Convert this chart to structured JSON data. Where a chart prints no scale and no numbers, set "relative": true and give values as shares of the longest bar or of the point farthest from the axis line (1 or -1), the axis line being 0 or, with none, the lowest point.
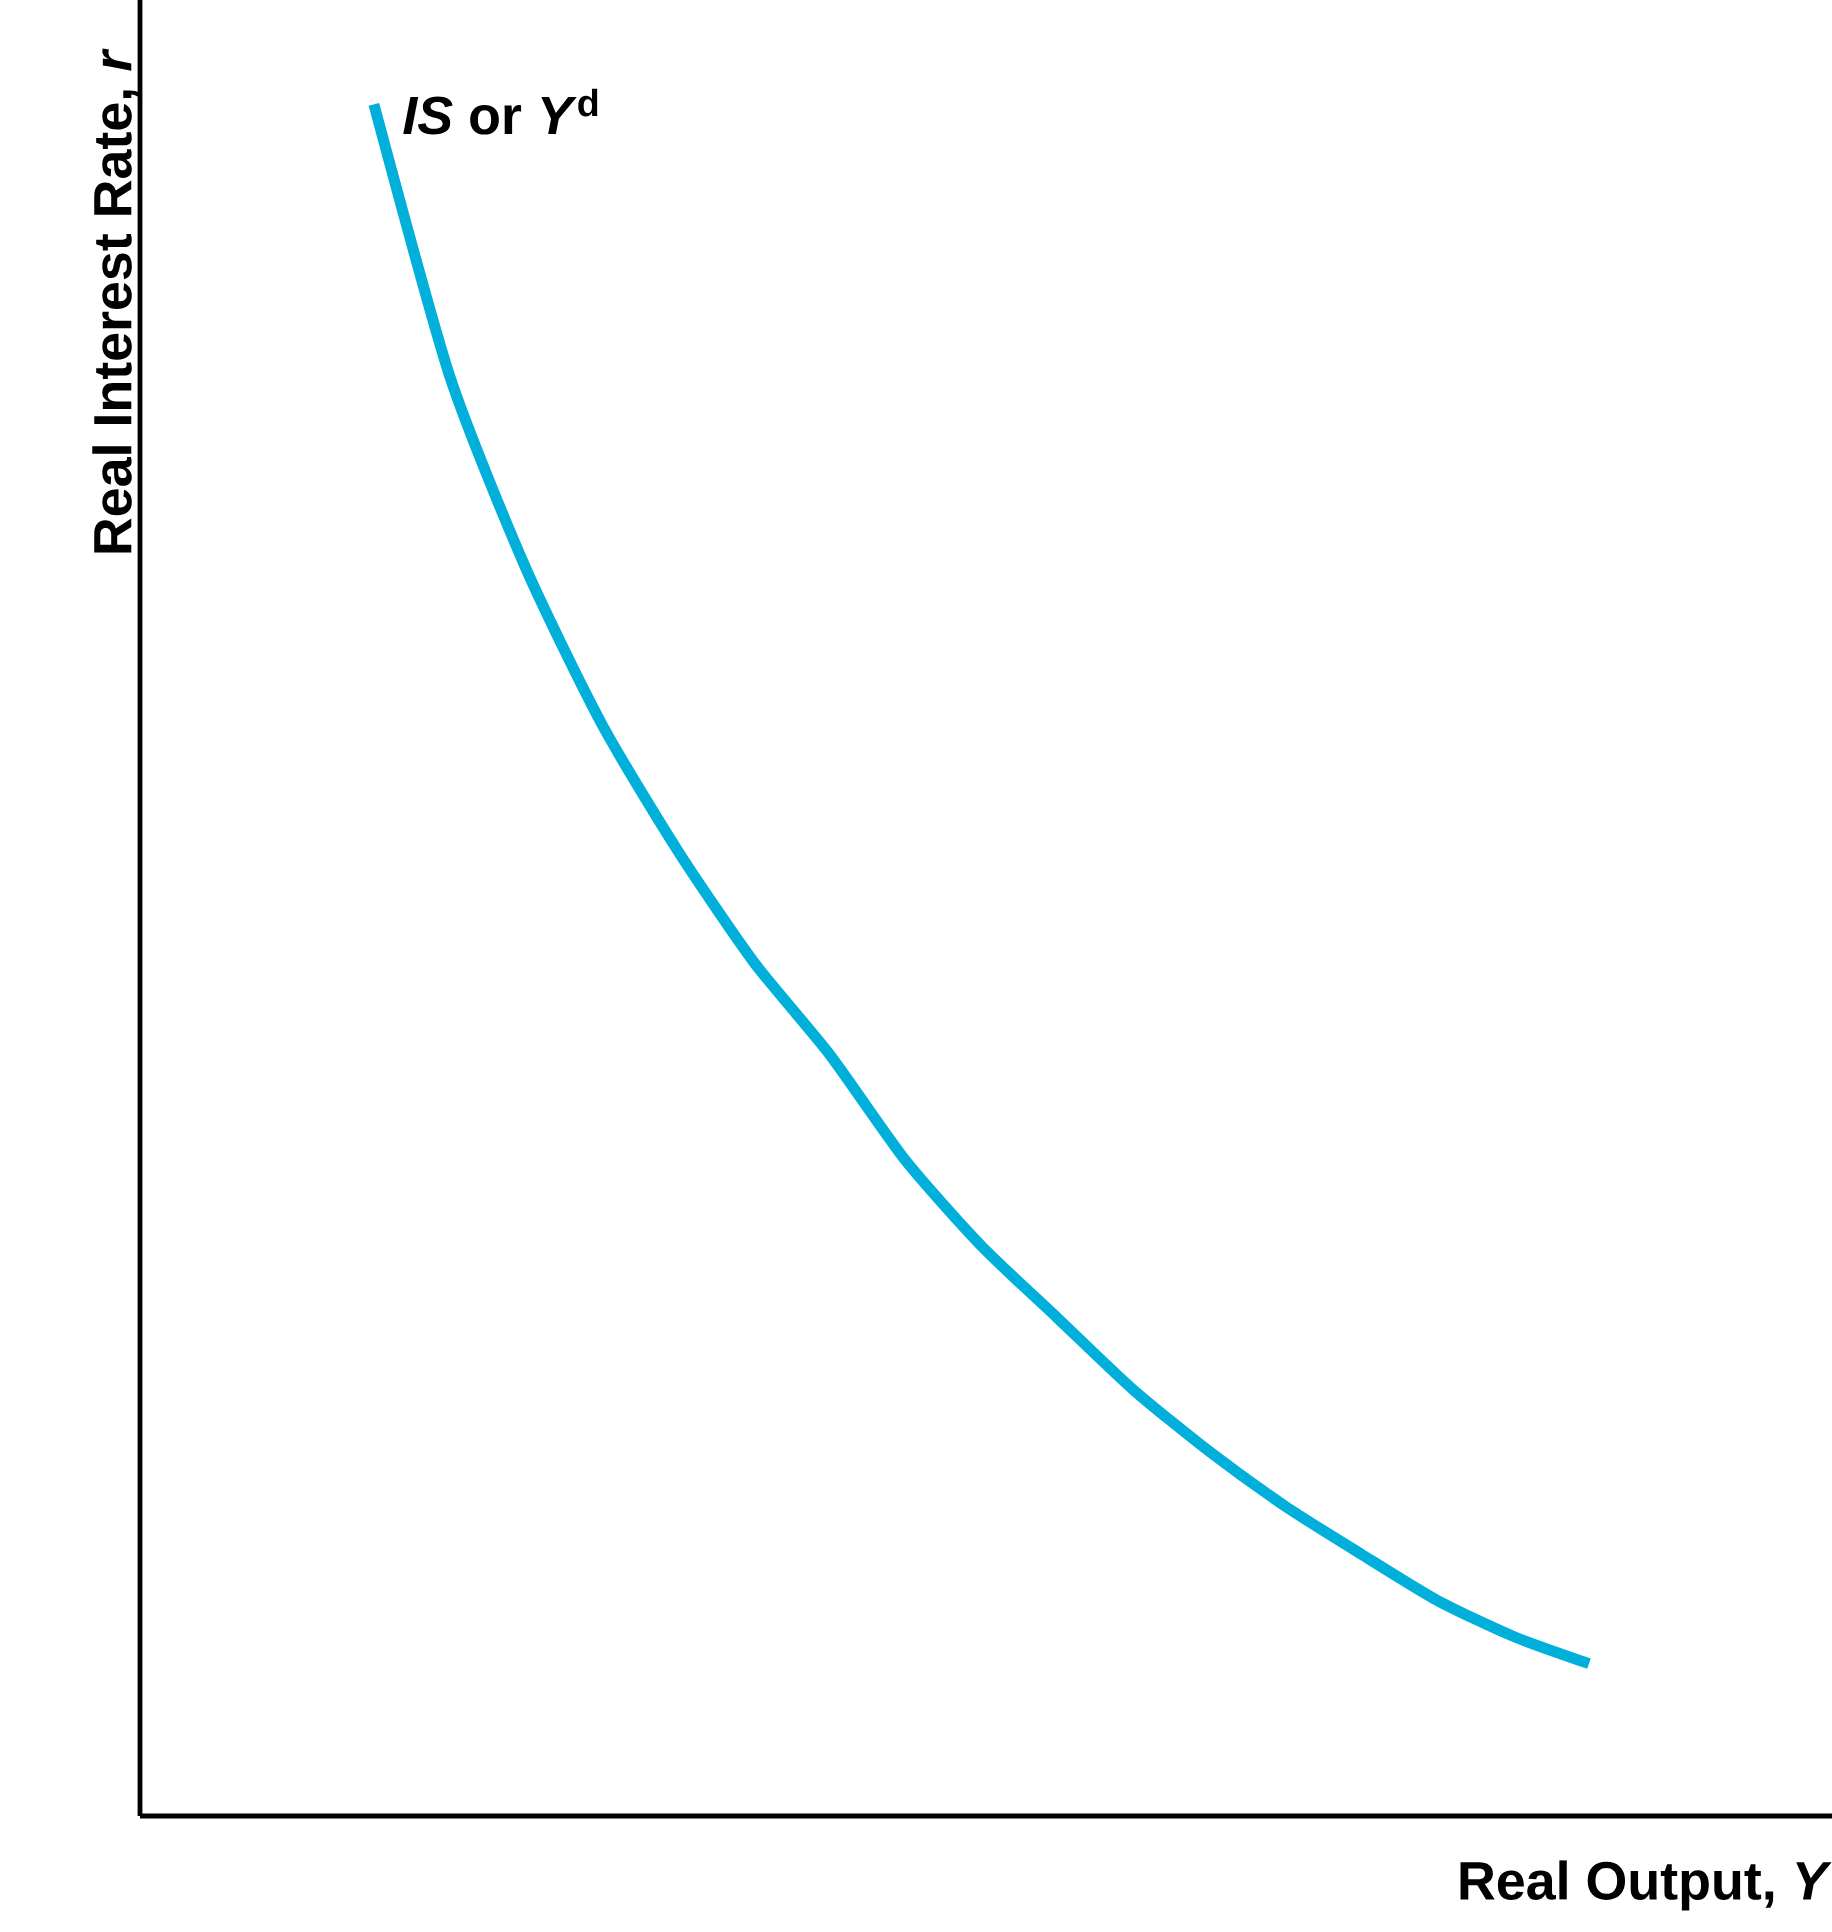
{
  "chart_data": {
    "type": "line",
    "relative": true,
    "xlabel": "Real Output, *Y*",
    "ylabel": "Real Interest Rate, *r*",
    "annotations": [
      "*IS* or *Y*$^{d}$"
    ],
    "categories": [
      null,
      null,
      null,
      null,
      null,
      null,
      null,
      null,
      null,
      null,
      null,
      null,
      null,
      null,
      null,
      null,
      null
    ],
    "color": "#00b0da",
    "values": [
      1,
      0.841,
      0.729,
      0.638,
      0.564,
      0.499,
      0.445,
      0.383,
      0.333,
      0.291,
      0.249,
      0.213,
      0.181,
      0.153,
      0.126,
      0.105,
      0.089
    ]
  }
}
